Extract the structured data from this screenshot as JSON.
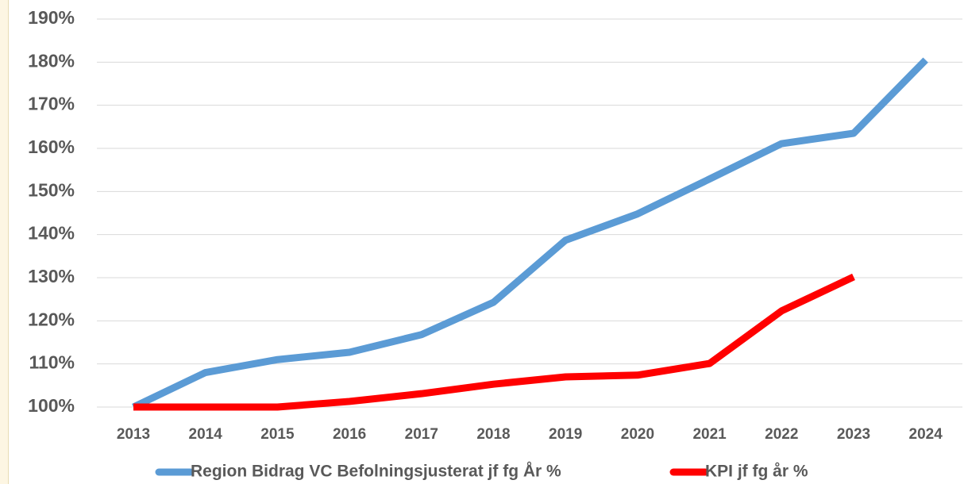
{
  "chart_data": {
    "type": "line",
    "categories": [
      "2013",
      "2014",
      "2015",
      "2016",
      "2017",
      "2018",
      "2019",
      "2020",
      "2021",
      "2022",
      "2023",
      "2024"
    ],
    "series": [
      {
        "name": "Region Bidrag VC Befolningsjusterat jf fg År %",
        "color": "#5b9bd5",
        "values": [
          100,
          108,
          111,
          112.7,
          116.8,
          124.3,
          138.7,
          144.8,
          152.9,
          161.1,
          163.5,
          180.5
        ]
      },
      {
        "name": "KPI jf fg år %",
        "color": "#ff0000",
        "values": [
          100,
          100,
          100,
          101.3,
          103.1,
          105.3,
          107,
          107.4,
          110.1,
          122.3,
          130.2,
          null
        ]
      }
    ],
    "ylim": [
      100,
      190
    ],
    "yticks": [
      {
        "value": 100,
        "label": "100%"
      },
      {
        "value": 110,
        "label": "110%"
      },
      {
        "value": 120,
        "label": "120%"
      },
      {
        "value": 130,
        "label": "130%"
      },
      {
        "value": 140,
        "label": "140%"
      },
      {
        "value": 150,
        "label": "150%"
      },
      {
        "value": 160,
        "label": "160%"
      },
      {
        "value": 170,
        "label": "170%"
      },
      {
        "value": 180,
        "label": "180%"
      },
      {
        "value": 190,
        "label": "190%"
      }
    ],
    "grid": true,
    "legend": "bottom"
  }
}
